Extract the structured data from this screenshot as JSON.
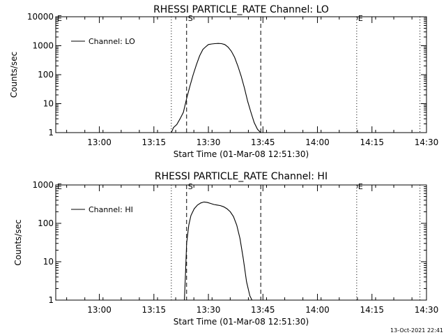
{
  "chart_data": [
    {
      "type": "line",
      "title": "RHESSI PARTICLE_RATE Channel: LO",
      "xlabel": "Start Time (01-Mar-08 12:51:30)",
      "ylabel": "Counts/sec",
      "y_scale": "log",
      "ylim": [
        1,
        10000
      ],
      "y_ticks": [
        1,
        10,
        100,
        1000,
        10000
      ],
      "y_tick_labels": [
        "1",
        "10",
        "100",
        "1000",
        "10000"
      ],
      "x_range_minutes": [
        12.8,
        14.5
      ],
      "x_tick_labels": [
        "13:00",
        "13:15",
        "13:30",
        "13:45",
        "14:00",
        "14:15",
        "14:30"
      ],
      "x_tick_values": [
        13.0,
        13.25,
        13.5,
        13.75,
        14.0,
        14.25,
        14.5
      ],
      "legend": {
        "position": "top-left",
        "entries": [
          "Channel: LO"
        ]
      },
      "markers": {
        "dotted": [
          13.33,
          14.18,
          14.47
        ],
        "dashed": [
          13.4,
          13.74
        ],
        "S_label": "S",
        "E_label": "E",
        "S_at": 13.4,
        "E_at": 14.18,
        "E_left_label": "E"
      },
      "series": [
        {
          "name": "Channel: LO",
          "x": [
            13.33,
            13.34,
            13.355,
            13.37,
            13.385,
            13.4,
            13.415,
            13.43,
            13.445,
            13.46,
            13.475,
            13.49,
            13.5,
            13.515,
            13.53,
            13.545,
            13.56,
            13.575,
            13.59,
            13.605,
            13.62,
            13.635,
            13.65,
            13.665,
            13.68,
            13.695,
            13.71,
            13.725,
            13.74
          ],
          "y": [
            1,
            1.5,
            1.9,
            3,
            5,
            15,
            40,
            100,
            220,
            450,
            750,
            950,
            1100,
            1150,
            1180,
            1200,
            1180,
            1100,
            900,
            650,
            400,
            200,
            90,
            35,
            12,
            5,
            2.2,
            1.3,
            1
          ]
        }
      ]
    },
    {
      "type": "line",
      "title": "RHESSI PARTICLE_RATE Channel: HI",
      "xlabel": "Start Time (01-Mar-08 12:51:30)",
      "ylabel": "Counts/sec",
      "y_scale": "log",
      "ylim": [
        1,
        1000
      ],
      "y_ticks": [
        1,
        10,
        100,
        1000
      ],
      "y_tick_labels": [
        "1",
        "10",
        "100",
        "1000"
      ],
      "x_range_minutes": [
        12.8,
        14.5
      ],
      "x_tick_labels": [
        "13:00",
        "13:15",
        "13:30",
        "13:45",
        "14:00",
        "14:15",
        "14:30"
      ],
      "x_tick_values": [
        13.0,
        13.25,
        13.5,
        13.75,
        14.0,
        14.25,
        14.5
      ],
      "legend": {
        "position": "top-left",
        "entries": [
          "Channel: HI"
        ]
      },
      "markers": {
        "dotted": [
          13.33,
          14.18,
          14.47
        ],
        "dashed": [
          13.4,
          13.74
        ],
        "S_label": "S",
        "E_label": "E",
        "S_at": 13.4,
        "E_at": 14.18,
        "E_left_label": "E"
      },
      "series": [
        {
          "name": "Channel: HI",
          "x": [
            13.39,
            13.395,
            13.4,
            13.41,
            13.42,
            13.435,
            13.45,
            13.465,
            13.48,
            13.495,
            13.51,
            13.525,
            13.54,
            13.555,
            13.57,
            13.585,
            13.6,
            13.615,
            13.63,
            13.645,
            13.66,
            13.675,
            13.69,
            13.7
          ],
          "y": [
            1,
            5,
            30,
            90,
            160,
            240,
            300,
            340,
            360,
            350,
            330,
            310,
            300,
            290,
            270,
            240,
            200,
            150,
            90,
            40,
            12,
            3,
            1.3,
            1
          ]
        }
      ]
    }
  ],
  "footer": {
    "timestamp": "13-Oct-2021 22:41"
  }
}
